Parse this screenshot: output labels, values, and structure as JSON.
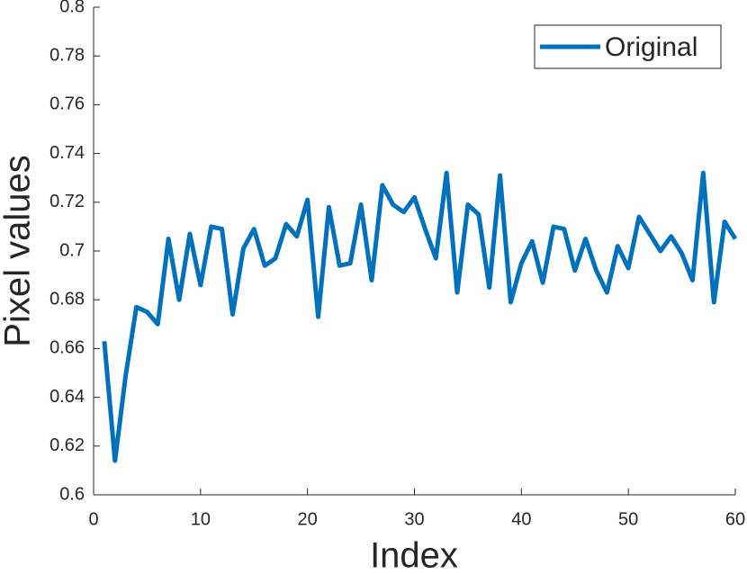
{
  "chart_data": {
    "type": "line",
    "x_label": "Index",
    "y_label": "Pixel values",
    "x": [
      1,
      2,
      3,
      4,
      5,
      6,
      7,
      8,
      9,
      10,
      11,
      12,
      13,
      14,
      15,
      16,
      17,
      18,
      19,
      20,
      21,
      22,
      23,
      24,
      25,
      26,
      27,
      28,
      29,
      30,
      31,
      32,
      33,
      34,
      35,
      36,
      37,
      38,
      39,
      40,
      41,
      42,
      43,
      44,
      45,
      46,
      47,
      48,
      49,
      50,
      51,
      52,
      53,
      54,
      55,
      56,
      57,
      58,
      59,
      60
    ],
    "series": [
      {
        "name": "Original",
        "color": "#0072bd",
        "values": [
          0.663,
          0.614,
          0.649,
          0.677,
          0.675,
          0.67,
          0.705,
          0.68,
          0.707,
          0.686,
          0.71,
          0.709,
          0.674,
          0.701,
          0.709,
          0.694,
          0.697,
          0.711,
          0.706,
          0.721,
          0.673,
          0.718,
          0.694,
          0.695,
          0.719,
          0.688,
          0.727,
          0.719,
          0.716,
          0.722,
          0.709,
          0.697,
          0.732,
          0.683,
          0.719,
          0.715,
          0.685,
          0.731,
          0.679,
          0.695,
          0.704,
          0.687,
          0.71,
          0.709,
          0.692,
          0.705,
          0.692,
          0.683,
          0.702,
          0.693,
          0.714,
          0.707,
          0.7,
          0.706,
          0.699,
          0.688,
          0.732,
          0.679,
          0.712,
          0.705
        ]
      }
    ],
    "xlim": [
      0,
      60
    ],
    "xticks": [
      0,
      10,
      20,
      30,
      40,
      50,
      60
    ],
    "ylim": [
      0.6,
      0.8
    ],
    "yticks": [
      0.6,
      0.62,
      0.64,
      0.66,
      0.68,
      0.7,
      0.72,
      0.74,
      0.76,
      0.78,
      0.8
    ],
    "legend": "northeast"
  }
}
